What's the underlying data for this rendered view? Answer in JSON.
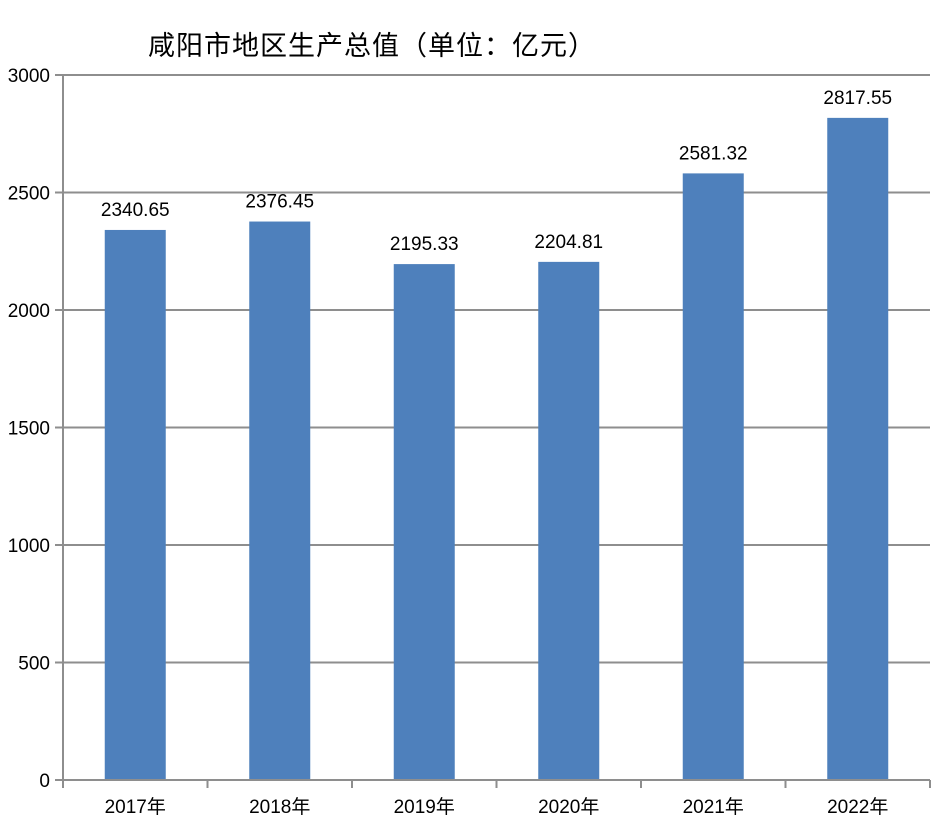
{
  "chart_data": {
    "type": "bar",
    "title": "咸阳市地区生产总值（单位：亿元）",
    "categories": [
      "2017年",
      "2018年",
      "2019年",
      "2020年",
      "2021年",
      "2022年"
    ],
    "values": [
      2340.65,
      2376.45,
      2195.33,
      2204.81,
      2581.32,
      2817.55
    ],
    "data_labels": [
      "2340.65",
      "2376.45",
      "2195.33",
      "2204.81",
      "2581.32",
      "2817.55"
    ],
    "xlabel": "",
    "ylabel": "",
    "ylim": [
      0,
      3000
    ],
    "yticks": [
      0,
      500,
      1000,
      1500,
      2000,
      2500,
      3000
    ],
    "grid": true,
    "legend": false,
    "colors": {
      "bar": "#4E80BC",
      "grid": "#8E8E8E",
      "axis": "#8E8E8E",
      "text": "#000000",
      "background": "#FFFFFF"
    }
  }
}
